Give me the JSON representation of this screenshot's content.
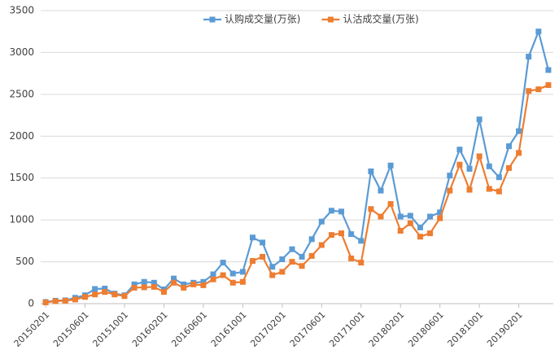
{
  "chart_data": {
    "type": "line",
    "categories": [
      "20150201",
      null,
      null,
      null,
      "20150601",
      null,
      null,
      null,
      "20151001",
      null,
      null,
      null,
      "20160201",
      null,
      null,
      null,
      "20160601",
      null,
      null,
      null,
      "20161001",
      null,
      null,
      null,
      "20170201",
      null,
      null,
      null,
      "20170601",
      null,
      null,
      null,
      "20171001",
      null,
      null,
      null,
      "20180201",
      null,
      null,
      null,
      "20180601",
      null,
      null,
      null,
      "20181001",
      null,
      null,
      null,
      "20190201",
      null,
      null,
      null
    ],
    "series": [
      {
        "name": "认购成交量(万张)",
        "color": "#5b9bd5",
        "values": [
          20,
          35,
          40,
          70,
          100,
          175,
          180,
          120,
          100,
          230,
          260,
          250,
          170,
          300,
          230,
          250,
          260,
          350,
          490,
          360,
          380,
          790,
          730,
          440,
          530,
          650,
          560,
          770,
          980,
          1110,
          1100,
          830,
          750,
          1580,
          1350,
          1650,
          1040,
          1050,
          910,
          1040,
          1090,
          1530,
          1840,
          1610,
          2200,
          1640,
          1510,
          1880,
          2060,
          2950,
          3250,
          2790
        ]
      },
      {
        "name": "认沽成交量(万张)",
        "color": "#ed7d31",
        "values": [
          15,
          30,
          35,
          50,
          80,
          110,
          140,
          110,
          90,
          190,
          195,
          200,
          140,
          250,
          190,
          230,
          220,
          290,
          340,
          250,
          260,
          510,
          560,
          340,
          380,
          500,
          450,
          570,
          700,
          820,
          840,
          540,
          490,
          1130,
          1040,
          1190,
          870,
          960,
          800,
          840,
          1020,
          1350,
          1660,
          1360,
          1760,
          1370,
          1340,
          1620,
          1800,
          2540,
          2560,
          2610
        ]
      }
    ],
    "ylim": [
      0,
      3500
    ],
    "yticks": [
      0,
      500,
      1000,
      1500,
      2000,
      2500,
      3000,
      3500
    ],
    "grid": true,
    "legend": "top"
  }
}
